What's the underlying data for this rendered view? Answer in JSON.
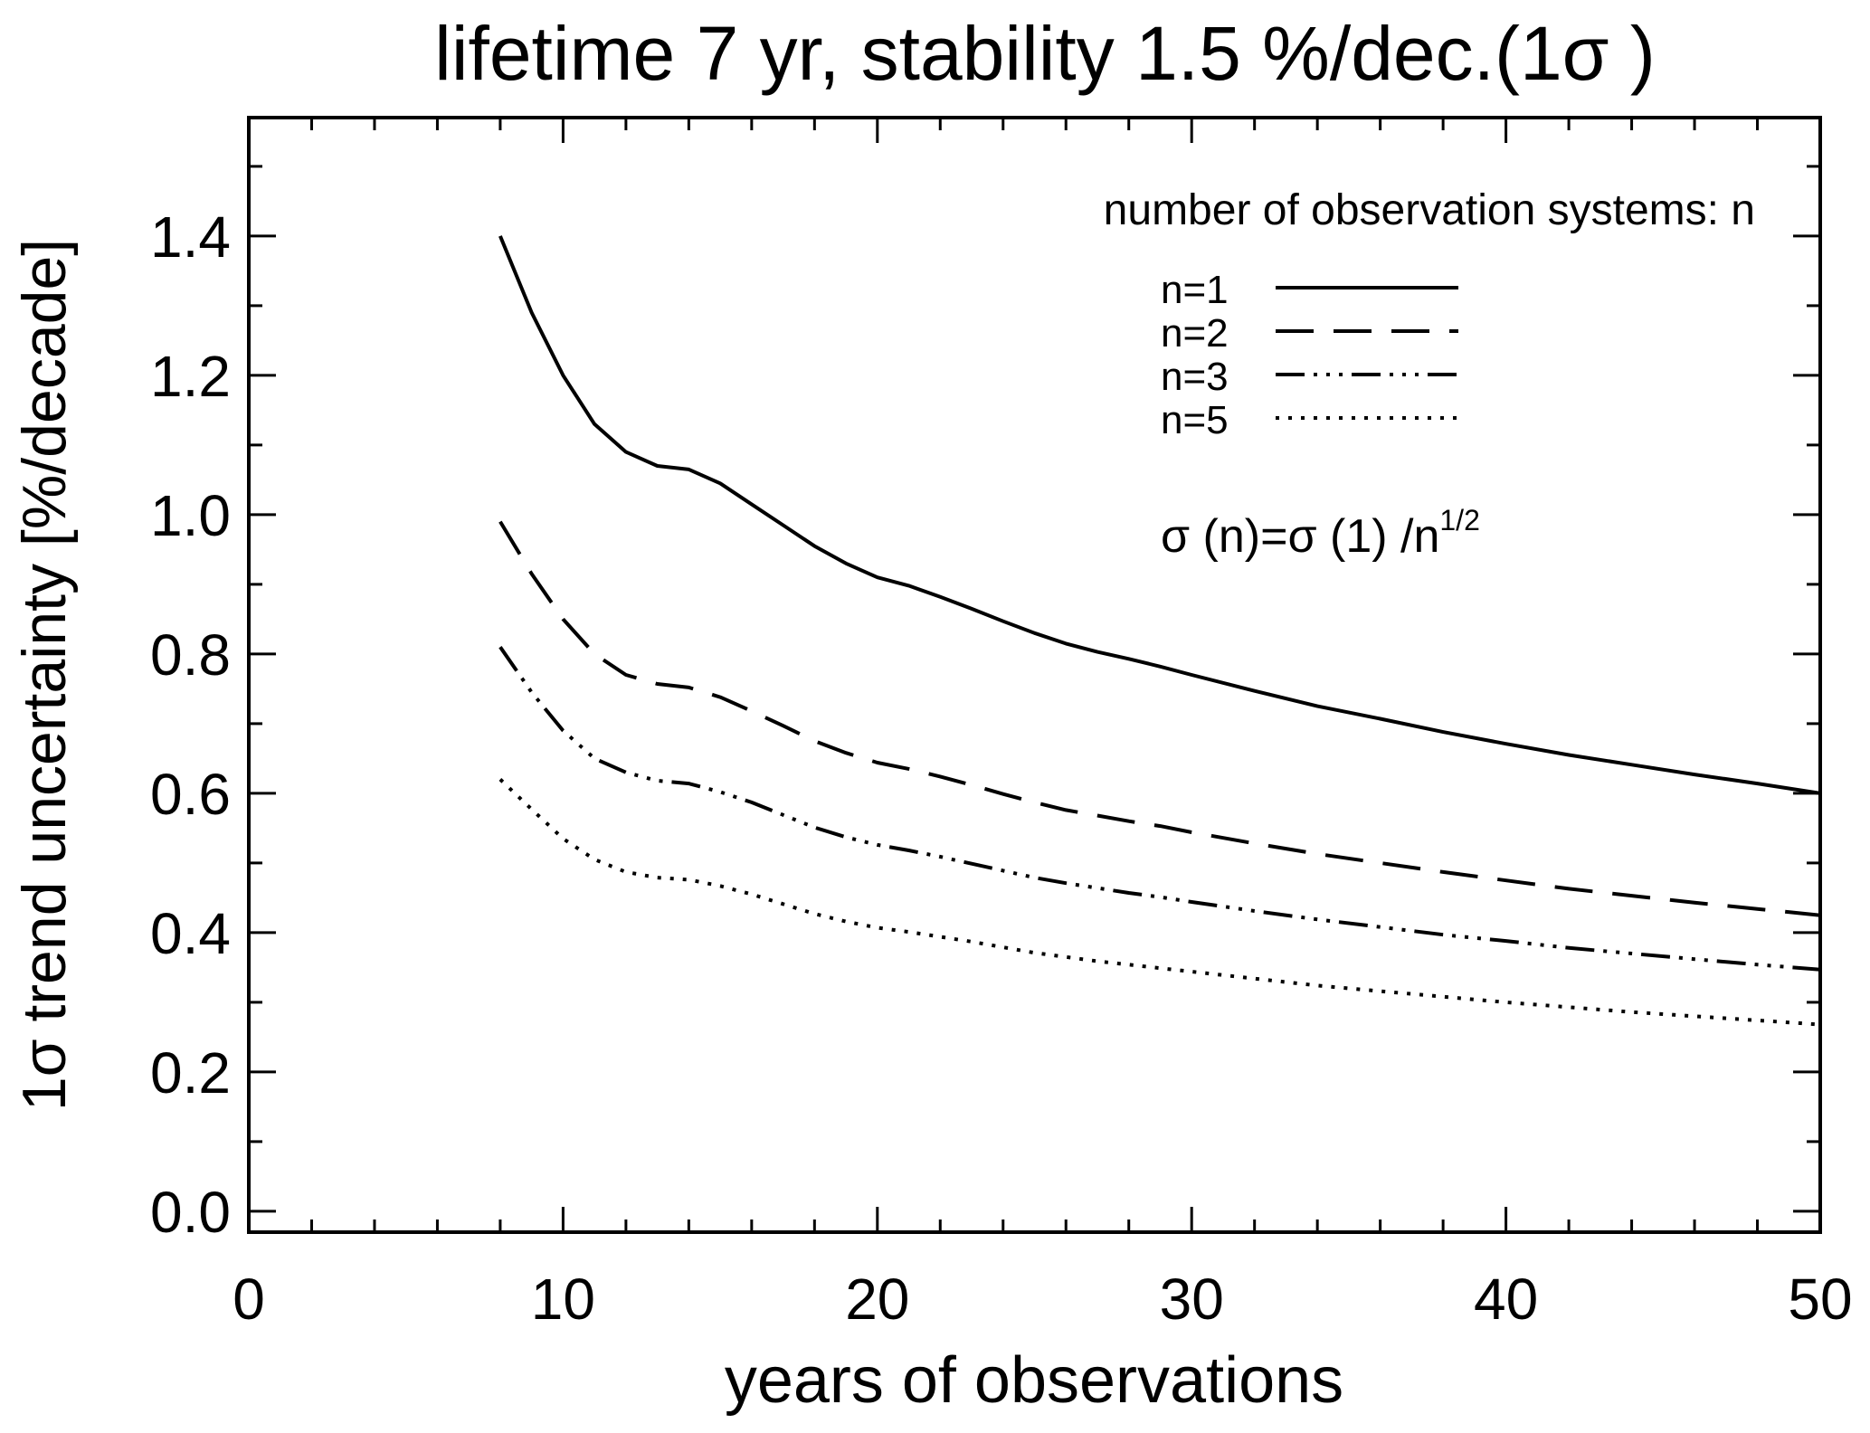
{
  "chart_data": {
    "type": "line",
    "title": "lifetime 7 yr, stability 1.5 %/dec.(1σ )",
    "xlabel": "years of observations",
    "ylabel": "1σ  trend uncertainty [%/decade]",
    "xlim": [
      0,
      50
    ],
    "ylim": [
      -0.03,
      1.57
    ],
    "xticks": [
      0,
      10,
      20,
      30,
      40,
      50
    ],
    "xtick_labels": [
      "0",
      "10",
      "20",
      "30",
      "40",
      "50"
    ],
    "xminor_step": 2,
    "yticks": [
      0.0,
      0.2,
      0.4,
      0.6,
      0.8,
      1.0,
      1.2,
      1.4
    ],
    "ytick_labels": [
      "0.0",
      "0.2",
      "0.4",
      "0.6",
      "0.8",
      "1.0",
      "1.2",
      "1.4"
    ],
    "yminor_step": 0.1,
    "grid": false,
    "legend_position": "top-right",
    "legend_title": "number of observation systems: n",
    "formula": {
      "lhs": "σ (n)=σ (1) /n",
      "sup": "1/2"
    },
    "x": [
      8,
      9,
      10,
      11,
      12,
      13,
      14,
      15,
      16,
      17,
      18,
      19,
      20,
      21,
      22,
      23,
      24,
      25,
      26,
      27,
      28,
      29,
      30,
      32,
      34,
      36,
      38,
      40,
      42,
      44,
      46,
      48,
      50
    ],
    "series": [
      {
        "name": "n=1",
        "style": "solid",
        "values": [
          1.4,
          1.29,
          1.2,
          1.13,
          1.09,
          1.07,
          1.065,
          1.045,
          1.015,
          0.985,
          0.955,
          0.93,
          0.91,
          0.898,
          0.882,
          0.865,
          0.847,
          0.83,
          0.815,
          0.803,
          0.793,
          0.782,
          0.77,
          0.747,
          0.725,
          0.707,
          0.688,
          0.671,
          0.655,
          0.641,
          0.627,
          0.614,
          0.6
        ]
      },
      {
        "name": "n=2",
        "style": "dashed",
        "values": [
          0.99,
          0.915,
          0.85,
          0.8,
          0.77,
          0.757,
          0.752,
          0.738,
          0.718,
          0.697,
          0.675,
          0.658,
          0.644,
          0.635,
          0.624,
          0.612,
          0.599,
          0.587,
          0.576,
          0.568,
          0.56,
          0.553,
          0.544,
          0.528,
          0.513,
          0.5,
          0.487,
          0.475,
          0.463,
          0.453,
          0.443,
          0.434,
          0.425
        ]
      },
      {
        "name": "n=3",
        "style": "dash-dot-dot",
        "values": [
          0.81,
          0.745,
          0.69,
          0.65,
          0.63,
          0.618,
          0.614,
          0.602,
          0.587,
          0.569,
          0.551,
          0.537,
          0.526,
          0.518,
          0.509,
          0.499,
          0.489,
          0.479,
          0.471,
          0.464,
          0.457,
          0.451,
          0.444,
          0.431,
          0.419,
          0.408,
          0.397,
          0.388,
          0.378,
          0.37,
          0.362,
          0.354,
          0.347
        ]
      },
      {
        "name": "n=5",
        "style": "dotted",
        "values": [
          0.62,
          0.577,
          0.535,
          0.505,
          0.487,
          0.479,
          0.476,
          0.467,
          0.455,
          0.441,
          0.427,
          0.416,
          0.407,
          0.401,
          0.394,
          0.387,
          0.379,
          0.371,
          0.365,
          0.359,
          0.354,
          0.349,
          0.344,
          0.334,
          0.324,
          0.316,
          0.308,
          0.3,
          0.293,
          0.286,
          0.28,
          0.274,
          0.268
        ]
      }
    ]
  }
}
